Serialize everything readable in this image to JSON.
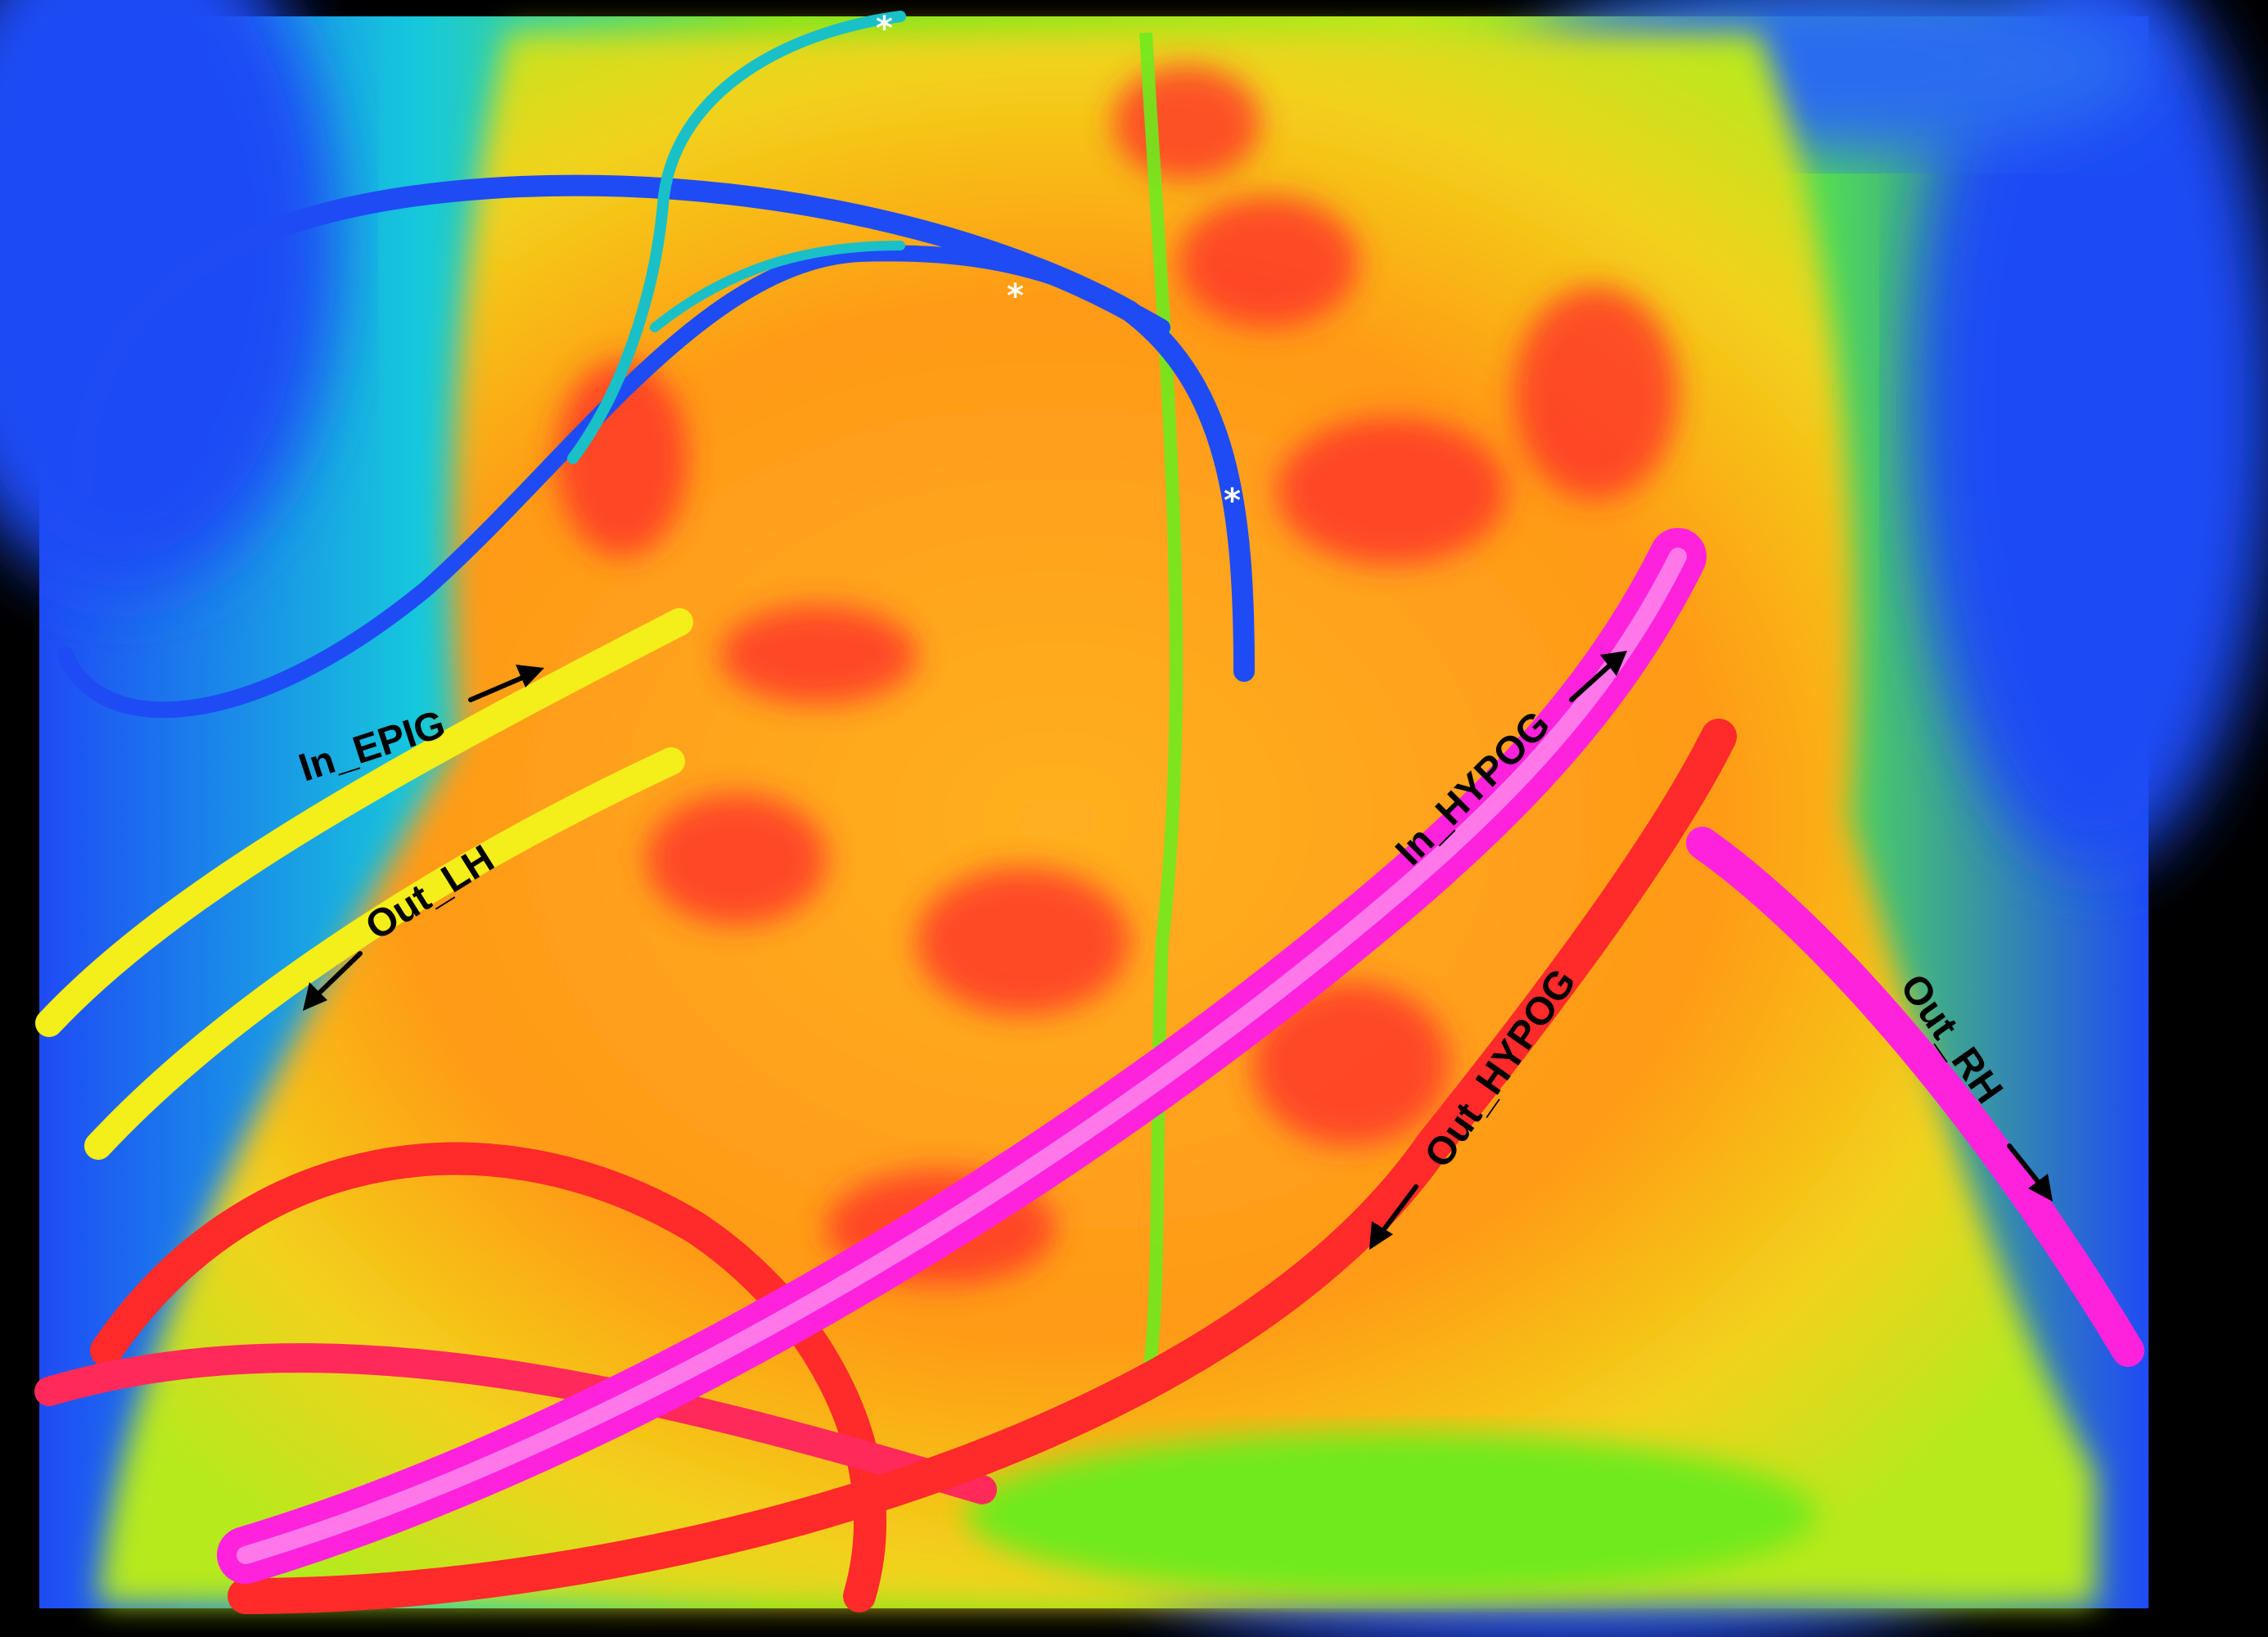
{
  "image": {
    "kind": "thermal-image",
    "background": "#000000",
    "palette": {
      "cold": "#1e4cff",
      "cool": "#19d6e6",
      "mid": "#6fea1e",
      "warm": "#f4ee1a",
      "hot": "#ff9a14",
      "hotter": "#ff2a2a",
      "hottest": "#ff22dd"
    }
  },
  "labels": {
    "in_epig": "In_EPIG",
    "out_lh": "Out_LH",
    "in_hypog": "In_HYPOG",
    "out_hypog": "Out_HYPOG",
    "out_rh": "Out_RH"
  },
  "markers": {
    "star1": "*",
    "star2": "*",
    "star3": "*"
  }
}
